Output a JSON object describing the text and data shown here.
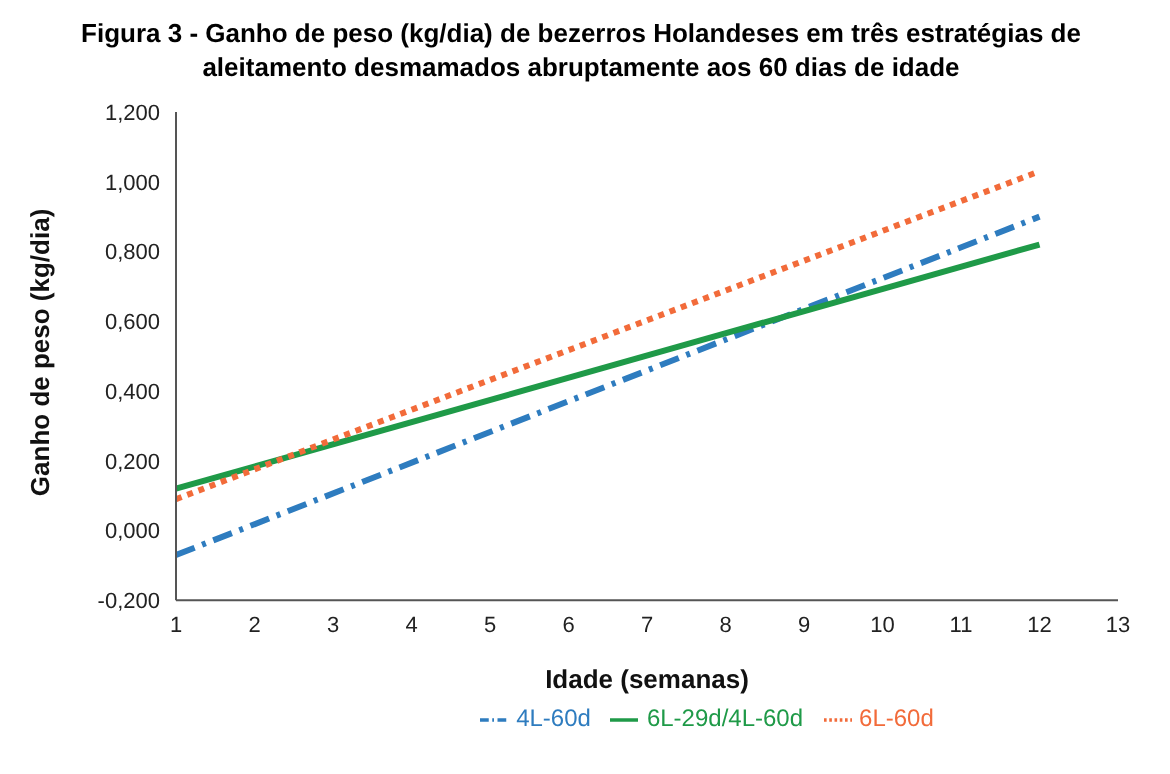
{
  "chart_data": {
    "type": "line",
    "title": "Figura 3 - Ganho de peso (kg/dia) de bezerros Holandeses em três estratégias de aleitamento desmamados abruptamente aos 60 dias de idade",
    "xlabel": "Idade (semanas)",
    "ylabel": "Ganho de peso (kg/dia)",
    "xlim": [
      1,
      13
    ],
    "xticks": [
      1,
      2,
      3,
      4,
      5,
      6,
      7,
      8,
      9,
      10,
      11,
      12,
      13
    ],
    "ylim": [
      -0.2,
      1.2
    ],
    "yticks": [
      {
        "value": -0.2,
        "label": "-0,200"
      },
      {
        "value": 0,
        "label": "0,000"
      },
      {
        "value": 0.2,
        "label": "0,200"
      },
      {
        "value": 0.4,
        "label": "0,400"
      },
      {
        "value": 0.6,
        "label": "0,600"
      },
      {
        "value": 0.8,
        "label": "0,800"
      },
      {
        "value": 1,
        "label": "1,000"
      },
      {
        "value": 1.2,
        "label": "1,200"
      }
    ],
    "x": [
      1,
      12
    ],
    "grid": false,
    "legend": "bottom",
    "marker": "none",
    "series": [
      {
        "name": "4L-60d",
        "color": "#2e7cbf",
        "values": [
          -0.07,
          0.9
        ],
        "line_style": "dashed"
      },
      {
        "name": "6L-29d/4L-60d",
        "color": "#1f9a48",
        "values": [
          0.12,
          0.82
        ],
        "line_style": "solid"
      },
      {
        "name": "6L-60d",
        "color": "#f26b3a",
        "values": [
          0.09,
          1.03
        ],
        "line_style": "dotted"
      }
    ]
  }
}
